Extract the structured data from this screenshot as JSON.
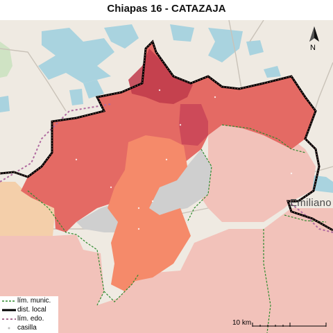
{
  "title": "Chiapas 16 - CATAZAJA",
  "compass": {
    "label": "N"
  },
  "place_label": "Emiliano",
  "legend": {
    "items": [
      {
        "label": "lím. munic.",
        "color": "#2e8b2e",
        "style": "dashed"
      },
      {
        "label": "dist. local",
        "color": "#000000",
        "style": "thick"
      },
      {
        "label": "lím. edo.",
        "color": "#8b3a6b",
        "style": "dashed"
      },
      {
        "label": "casilla",
        "color": "#bbbbbb",
        "style": "dots"
      }
    ]
  },
  "scale": {
    "label": "10 km"
  },
  "colors": {
    "land": "#efeae2",
    "water": "#a9d3df",
    "district_fill": "#e46a64",
    "district_dark": "#c0394a",
    "neighbor_fill": "#f2c2ba",
    "neighbor_peach": "#f4cfaa",
    "grey_area": "#cfcfcf",
    "orange_area": "#f58a6a"
  }
}
